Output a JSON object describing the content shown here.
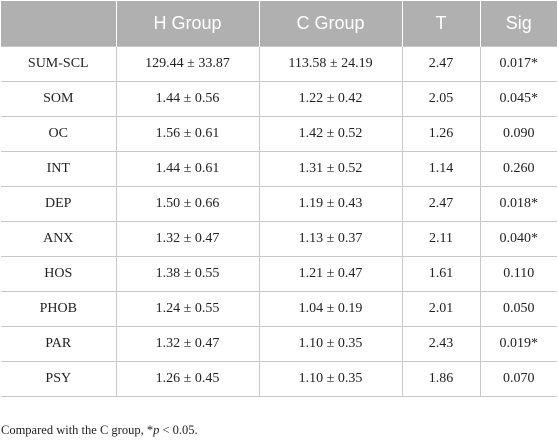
{
  "table": {
    "headers": [
      "",
      "H Group",
      "C Group",
      "T",
      "Sig"
    ],
    "rows": [
      [
        "SUM-SCL",
        "129.44 ± 33.87",
        "113.58 ± 24.19",
        "2.47",
        "0.017*"
      ],
      [
        "SOM",
        "1.44 ± 0.56",
        "1.22 ± 0.42",
        "2.05",
        "0.045*"
      ],
      [
        "OC",
        "1.56 ± 0.61",
        "1.42 ± 0.52",
        "1.26",
        "0.090"
      ],
      [
        "INT",
        "1.44 ± 0.61",
        "1.31 ± 0.52",
        "1.14",
        "0.260"
      ],
      [
        "DEP",
        "1.50 ± 0.66",
        "1.19 ± 0.43",
        "2.47",
        "0.018*"
      ],
      [
        "ANX",
        "1.32 ± 0.47",
        "1.13 ± 0.37",
        "2.11",
        "0.040*"
      ],
      [
        "HOS",
        "1.38 ± 0.55",
        "1.21 ± 0.47",
        "1.61",
        "0.110"
      ],
      [
        "PHOB",
        "1.24 ± 0.55",
        "1.04 ± 0.19",
        "2.01",
        "0.050"
      ],
      [
        "PAR",
        "1.32 ± 0.47",
        "1.10 ± 0.35",
        "2.43",
        "0.019*"
      ],
      [
        "PSY",
        "1.26 ± 0.45",
        "1.10 ± 0.35",
        "1.86",
        "0.070"
      ]
    ]
  },
  "footnote": {
    "prefix": "Compared with the C group, *",
    "italic": "p",
    "suffix": " < 0.05."
  },
  "colors": {
    "header_bg": "#b0b0b0",
    "header_text": "#ffffff",
    "grid": "#c8c8c8"
  }
}
